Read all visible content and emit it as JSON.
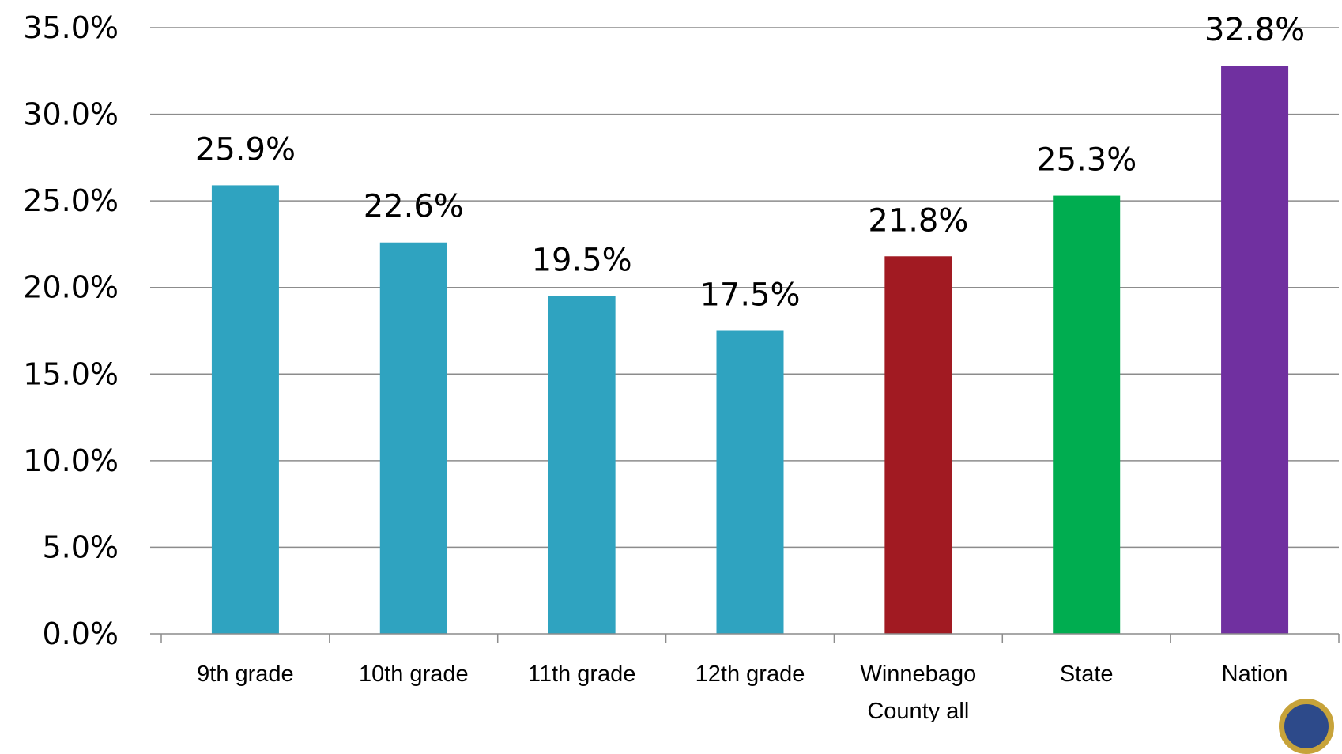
{
  "chart_data": {
    "type": "bar",
    "categories": [
      "9th grade",
      "10th grade",
      "11th grade",
      "12th grade",
      "Winnebago County all",
      "State",
      "Nation"
    ],
    "category_label_lines": [
      [
        "9th grade"
      ],
      [
        "10th grade"
      ],
      [
        "11th grade"
      ],
      [
        "12th grade"
      ],
      [
        "Winnebago",
        "County all"
      ],
      [
        "State"
      ],
      [
        "Nation"
      ]
    ],
    "values": [
      25.9,
      22.6,
      19.5,
      17.5,
      21.8,
      25.3,
      32.8
    ],
    "data_labels": [
      "25.9%",
      "22.6%",
      "19.5%",
      "17.5%",
      "21.8%",
      "25.3%",
      "32.8%"
    ],
    "bar_colors": [
      "#2fa3c0",
      "#2fa3c0",
      "#2fa3c0",
      "#2fa3c0",
      "#a11a22",
      "#00ad50",
      "#7030a0"
    ],
    "y_ticks": [
      "0.0%",
      "5.0%",
      "10.0%",
      "15.0%",
      "20.0%",
      "25.0%",
      "30.0%",
      "35.0%"
    ],
    "ylim": [
      0,
      35
    ],
    "y_step": 5,
    "grid": true,
    "legend": "none",
    "title": "",
    "xlabel": "",
    "ylabel": ""
  },
  "seal_icon": "county-seal-icon"
}
